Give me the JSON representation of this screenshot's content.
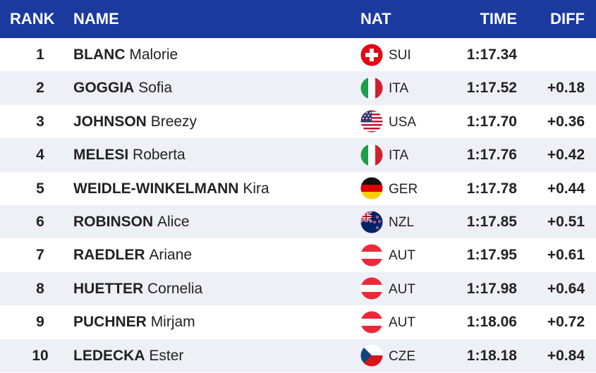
{
  "header": {
    "columns": [
      "RANK",
      "NAME",
      "NAT",
      "TIME",
      "DIFF"
    ]
  },
  "rows": [
    {
      "rank": 1,
      "surname": "BLANC",
      "given": "Malorie",
      "nat": "SUI",
      "time": "1:17.34"
    },
    {
      "rank": 2,
      "surname": "GOGGIA",
      "given": "Sofia",
      "nat": "ITA",
      "time": "1:17.52",
      "diff": "+0.18"
    },
    {
      "rank": 3,
      "surname": "JOHNSON",
      "given": "Breezy",
      "nat": "USA",
      "time": "1:17.70",
      "diff": "+0.36"
    },
    {
      "rank": 4,
      "surname": "MELESI",
      "given": "Roberta",
      "nat": "ITA",
      "time": "1:17.76",
      "diff": "+0.42"
    },
    {
      "rank": 5,
      "surname": "WEIDLE-WINKELMANN",
      "given": "Kira",
      "nat": "GER",
      "time": "1:17.78",
      "diff": "+0.44"
    },
    {
      "rank": 6,
      "surname": "ROBINSON",
      "given": "Alice",
      "nat": "NZL",
      "time": "1:17.85",
      "diff": "+0.51"
    },
    {
      "rank": 7,
      "surname": "RAEDLER",
      "given": "Ariane",
      "nat": "AUT",
      "time": "1:17.95",
      "diff": "+0.61"
    },
    {
      "rank": 8,
      "surname": "HUETTER",
      "given": "Cornelia",
      "nat": "AUT",
      "time": "1:17.98",
      "diff": "+0.64"
    },
    {
      "rank": 9,
      "surname": "PUCHNER",
      "given": "Mirjam",
      "nat": "AUT",
      "time": "1:18.06",
      "diff": "+0.72"
    },
    {
      "rank": 10,
      "surname": "LEDECKA",
      "given": "Ester",
      "nat": "CZE",
      "time": "1:18.18",
      "diff": "+0.84"
    }
  ]
}
